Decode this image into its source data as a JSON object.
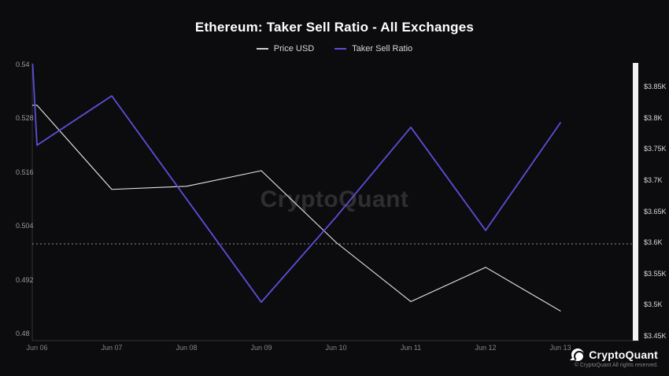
{
  "header": {
    "title": "Ethereum: Taker Sell Ratio - All Exchanges"
  },
  "legend": {
    "items": [
      {
        "label": "Price USD",
        "color": "#cfcfd6"
      },
      {
        "label": "Taker Sell Ratio",
        "color": "#5b4edb"
      }
    ]
  },
  "watermark": {
    "text": "CryptoQuant"
  },
  "footer": {
    "brand": "CryptoQuant",
    "copyright": "© CryptoQuant All rights reserved."
  },
  "chart_data": {
    "type": "line",
    "title": "Ethereum: Taker Sell Ratio - All Exchanges",
    "categories": [
      "Jun 06",
      "Jun 07",
      "Jun 08",
      "Jun 09",
      "Jun 10",
      "Jun 11",
      "Jun 12",
      "Jun 13"
    ],
    "series": [
      {
        "name": "Price USD",
        "axis": "price",
        "color": "#e8e8ea",
        "values": [
          3.82,
          3.685,
          3.69,
          3.715,
          3.6,
          3.505,
          3.56,
          3.49
        ]
      },
      {
        "name": "Taker Sell Ratio",
        "axis": "ratio",
        "color": "#5b4edb",
        "lead_in_value": 0.54,
        "values": [
          0.522,
          0.533,
          0.51,
          0.487,
          0.506,
          0.526,
          0.503,
          0.527
        ]
      }
    ],
    "ratio_axis": {
      "side": "left",
      "min": 0.48,
      "max": 0.54,
      "tick_labels": [
        "0.54",
        "0.528",
        "0.516",
        "0.504",
        "0.492",
        "0.48"
      ],
      "tick_values": [
        0.54,
        0.528,
        0.516,
        0.504,
        0.492,
        0.48
      ]
    },
    "price_axis": {
      "side": "right",
      "min": 3.45,
      "max": 3.85,
      "tick_labels": [
        "$3.85K",
        "$3.8K",
        "$3.75K",
        "$3.7K",
        "$3.65K",
        "$3.6K",
        "$3.55K",
        "$3.5K",
        "$3.45K"
      ],
      "tick_values": [
        3.85,
        3.8,
        3.75,
        3.7,
        3.65,
        3.6,
        3.55,
        3.5,
        3.45
      ]
    },
    "reference_line": {
      "axis": "ratio",
      "value": 0.5,
      "style": "dotted",
      "color": "#8f8f96"
    },
    "grid": false,
    "legend_position": "top",
    "background_color": "#0c0c0e",
    "right_axis_strip_color": "#f2f2f3"
  }
}
